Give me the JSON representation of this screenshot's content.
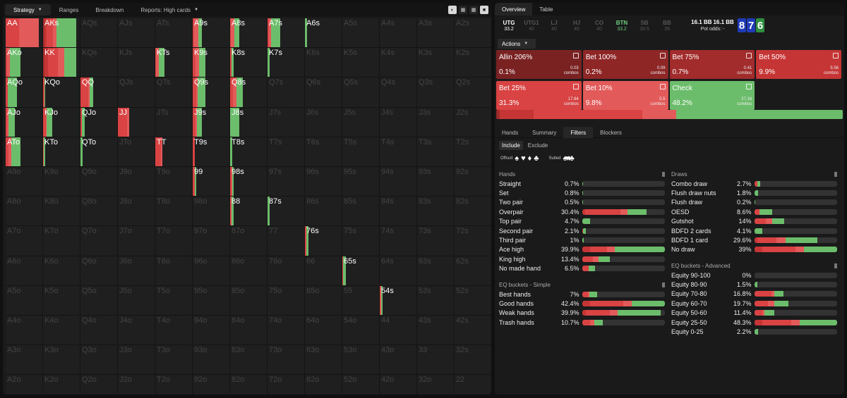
{
  "toolbar": {
    "items": [
      "Strategy",
      "Ranges",
      "Breakdown",
      "Reports: High cards"
    ]
  },
  "colors": {
    "allin": "#7a2222",
    "bet100": "#8e2626",
    "bet75": "#a22b2b",
    "bet50": "#c63535",
    "bet25": "#d94343",
    "bet10": "#e35a5a",
    "check": "#6cbd6b",
    "empty": "#333333"
  },
  "grid": [
    [
      {
        "l": "AA",
        "f": 0.9,
        "m": [
          0,
          0,
          0,
          0,
          40,
          60,
          0
        ]
      },
      {
        "l": "AKs",
        "f": 0.9,
        "m": [
          0,
          0,
          5,
          5,
          20,
          10,
          60
        ]
      },
      {
        "l": "AQs"
      },
      {
        "l": "AJs"
      },
      {
        "l": "ATs"
      },
      {
        "l": "A9s",
        "f": 0.25,
        "m": [
          0,
          0,
          0,
          0,
          15,
          45,
          40
        ]
      },
      {
        "l": "A8s",
        "f": 0.25,
        "m": [
          0,
          0,
          0,
          0,
          10,
          40,
          50
        ]
      },
      {
        "l": "A7s",
        "f": 0.35,
        "m": [
          0,
          0,
          0,
          0,
          10,
          20,
          70
        ]
      },
      {
        "l": "A6s",
        "f": 0.05,
        "m": [
          0,
          0,
          0,
          0,
          0,
          0,
          100
        ]
      },
      {
        "l": "A5s"
      },
      {
        "l": "A4s"
      },
      {
        "l": "A3s"
      },
      {
        "l": "A2s"
      }
    ],
    [
      {
        "l": "AKo",
        "f": 0.4,
        "m": [
          0,
          0,
          0,
          0,
          10,
          20,
          70
        ]
      },
      {
        "l": "KK",
        "f": 0.9,
        "m": [
          0,
          0,
          5,
          10,
          30,
          20,
          35
        ]
      },
      {
        "l": "KQs"
      },
      {
        "l": "KJs"
      },
      {
        "l": "KTs",
        "f": 0.25,
        "m": [
          0,
          0,
          0,
          0,
          10,
          30,
          60
        ]
      },
      {
        "l": "K9s",
        "f": 0.35,
        "m": [
          0,
          0,
          0,
          0,
          20,
          30,
          50
        ]
      },
      {
        "l": "K8s",
        "f": 0.1,
        "m": [
          0,
          0,
          0,
          0,
          30,
          0,
          70
        ]
      },
      {
        "l": "K7s",
        "f": 0.05,
        "m": [
          0,
          0,
          0,
          0,
          0,
          0,
          100
        ]
      },
      {
        "l": "K6s"
      },
      {
        "l": "K5s"
      },
      {
        "l": "K4s"
      },
      {
        "l": "K3s"
      },
      {
        "l": "K2s"
      }
    ],
    [
      {
        "l": "AQo",
        "f": 0.3,
        "m": [
          0,
          0,
          0,
          0,
          20,
          0,
          80
        ]
      },
      {
        "l": "KQo",
        "f": 0.05,
        "m": [
          0,
          0,
          0,
          0,
          80,
          0,
          20
        ]
      },
      {
        "l": "QQ",
        "f": 0.35,
        "m": [
          0,
          0,
          0,
          0,
          60,
          10,
          30
        ]
      },
      {
        "l": "QJs"
      },
      {
        "l": "QTs"
      },
      {
        "l": "Q9s",
        "f": 0.35,
        "m": [
          0,
          0,
          0,
          0,
          30,
          10,
          60
        ]
      },
      {
        "l": "Q8s",
        "f": 0.35,
        "m": [
          0,
          0,
          0,
          0,
          20,
          30,
          50
        ]
      },
      {
        "l": "Q7s"
      },
      {
        "l": "Q6s"
      },
      {
        "l": "Q5s"
      },
      {
        "l": "Q4s"
      },
      {
        "l": "Q3s"
      },
      {
        "l": "Q2s"
      }
    ],
    [
      {
        "l": "AJo",
        "f": 0.25,
        "m": [
          0,
          0,
          0,
          0,
          15,
          15,
          70
        ]
      },
      {
        "l": "KJo",
        "f": 0.25,
        "m": [
          0,
          0,
          0,
          0,
          30,
          10,
          60
        ]
      },
      {
        "l": "QJo",
        "f": 0.12,
        "m": [
          0,
          0,
          0,
          0,
          30,
          10,
          60
        ]
      },
      {
        "l": "JJ",
        "f": 0.3,
        "m": [
          0,
          0,
          0,
          0,
          85,
          15,
          0
        ]
      },
      {
        "l": "JTs"
      },
      {
        "l": "J9s",
        "f": 0.25,
        "m": [
          0,
          0,
          0,
          0,
          30,
          20,
          50
        ]
      },
      {
        "l": "J8s",
        "f": 0.25,
        "m": [
          0,
          0,
          0,
          0,
          0,
          0,
          100
        ]
      },
      {
        "l": "J7s"
      },
      {
        "l": "J6s"
      },
      {
        "l": "J5s"
      },
      {
        "l": "J4s"
      },
      {
        "l": "J3s"
      },
      {
        "l": "J2s"
      }
    ],
    [
      {
        "l": "ATo",
        "f": 0.4,
        "m": [
          0,
          0,
          0,
          0,
          20,
          20,
          60
        ]
      },
      {
        "l": "KTo",
        "f": 0.05,
        "m": [
          0,
          0,
          0,
          0,
          10,
          10,
          80
        ]
      },
      {
        "l": "QTo",
        "f": 0.05,
        "m": [
          0,
          0,
          0,
          0,
          0,
          0,
          100
        ]
      },
      {
        "l": "JTo"
      },
      {
        "l": "TT",
        "f": 0.2,
        "m": [
          0,
          0,
          0,
          0,
          80,
          20,
          0
        ]
      },
      {
        "l": "T9s",
        "f": 0.05,
        "m": [
          0,
          0,
          0,
          0,
          100,
          0,
          0
        ]
      },
      {
        "l": "T8s",
        "f": 0.05,
        "m": [
          0,
          0,
          0,
          0,
          0,
          0,
          100
        ]
      },
      {
        "l": "T7s"
      },
      {
        "l": "T6s"
      },
      {
        "l": "T5s"
      },
      {
        "l": "T4s"
      },
      {
        "l": "T3s"
      },
      {
        "l": "T2s"
      }
    ],
    [
      {
        "l": "A9o"
      },
      {
        "l": "K9o"
      },
      {
        "l": "Q9o"
      },
      {
        "l": "J9o"
      },
      {
        "l": "T9o"
      },
      {
        "l": "99",
        "f": 0.1,
        "m": [
          0,
          0,
          0,
          0,
          60,
          0,
          40
        ]
      },
      {
        "l": "98s",
        "f": 0.1,
        "m": [
          0,
          0,
          0,
          0,
          30,
          20,
          50
        ]
      },
      {
        "l": "97s"
      },
      {
        "l": "96s"
      },
      {
        "l": "95s"
      },
      {
        "l": "94s"
      },
      {
        "l": "93s"
      },
      {
        "l": "92s"
      }
    ],
    [
      {
        "l": "A8o"
      },
      {
        "l": "K8o"
      },
      {
        "l": "Q8o"
      },
      {
        "l": "J8o"
      },
      {
        "l": "T8o"
      },
      {
        "l": "98o"
      },
      {
        "l": "88",
        "f": 0.1,
        "m": [
          0,
          0,
          0,
          0,
          20,
          20,
          60
        ]
      },
      {
        "l": "87s",
        "f": 0.05,
        "m": [
          0,
          0,
          0,
          0,
          0,
          0,
          100
        ]
      },
      {
        "l": "86s"
      },
      {
        "l": "85s"
      },
      {
        "l": "84s"
      },
      {
        "l": "83s"
      },
      {
        "l": "82s"
      }
    ],
    [
      {
        "l": "A7o"
      },
      {
        "l": "K7o"
      },
      {
        "l": "Q7o"
      },
      {
        "l": "J7o"
      },
      {
        "l": "T7o"
      },
      {
        "l": "97o"
      },
      {
        "l": "87o"
      },
      {
        "l": "77"
      },
      {
        "l": "76s",
        "f": 0.1,
        "m": [
          0,
          0,
          0,
          0,
          30,
          10,
          60
        ]
      },
      {
        "l": "75s"
      },
      {
        "l": "74s"
      },
      {
        "l": "73s"
      },
      {
        "l": "72s"
      }
    ],
    [
      {
        "l": "A6o"
      },
      {
        "l": "K6o"
      },
      {
        "l": "Q6o"
      },
      {
        "l": "J6o"
      },
      {
        "l": "T6o"
      },
      {
        "l": "96o"
      },
      {
        "l": "86o"
      },
      {
        "l": "76o"
      },
      {
        "l": "66"
      },
      {
        "l": "65s",
        "f": 0.1,
        "m": [
          0,
          0,
          0,
          0,
          10,
          10,
          80
        ]
      },
      {
        "l": "64s"
      },
      {
        "l": "63s"
      },
      {
        "l": "62s"
      }
    ],
    [
      {
        "l": "A5o"
      },
      {
        "l": "K5o"
      },
      {
        "l": "Q5o"
      },
      {
        "l": "J5o"
      },
      {
        "l": "T5o"
      },
      {
        "l": "95o"
      },
      {
        "l": "85o"
      },
      {
        "l": "75o"
      },
      {
        "l": "65o"
      },
      {
        "l": "55"
      },
      {
        "l": "54s",
        "f": 0.08,
        "m": [
          0,
          0,
          0,
          0,
          20,
          20,
          60
        ]
      },
      {
        "l": "53s"
      },
      {
        "l": "52s"
      }
    ],
    [
      {
        "l": "A4o"
      },
      {
        "l": "K4o"
      },
      {
        "l": "Q4o"
      },
      {
        "l": "J4o"
      },
      {
        "l": "T4o"
      },
      {
        "l": "94o"
      },
      {
        "l": "84o"
      },
      {
        "l": "74o"
      },
      {
        "l": "64o"
      },
      {
        "l": "54o"
      },
      {
        "l": "44"
      },
      {
        "l": "43s"
      },
      {
        "l": "42s"
      }
    ],
    [
      {
        "l": "A3o"
      },
      {
        "l": "K3o"
      },
      {
        "l": "Q3o"
      },
      {
        "l": "J3o"
      },
      {
        "l": "T3o"
      },
      {
        "l": "93o"
      },
      {
        "l": "83o"
      },
      {
        "l": "73o"
      },
      {
        "l": "63o"
      },
      {
        "l": "53o"
      },
      {
        "l": "43o"
      },
      {
        "l": "33"
      },
      {
        "l": "32s"
      }
    ],
    [
      {
        "l": "A2o"
      },
      {
        "l": "K2o"
      },
      {
        "l": "Q2o"
      },
      {
        "l": "J2o"
      },
      {
        "l": "T2o"
      },
      {
        "l": "92o"
      },
      {
        "l": "82o"
      },
      {
        "l": "72o"
      },
      {
        "l": "62o"
      },
      {
        "l": "52o"
      },
      {
        "l": "42o"
      },
      {
        "l": "32o"
      },
      {
        "l": "22"
      }
    ]
  ],
  "right": {
    "tabs": [
      "Overview",
      "Table"
    ],
    "positions": [
      {
        "n": "UTG",
        "s": "33.2",
        "cls": "hero"
      },
      {
        "n": "UTG1",
        "s": "40",
        "cls": ""
      },
      {
        "n": "LJ",
        "s": "40",
        "cls": ""
      },
      {
        "n": "HJ",
        "s": "40",
        "cls": ""
      },
      {
        "n": "CO",
        "s": "40",
        "cls": ""
      },
      {
        "n": "BTN",
        "s": "33.2",
        "cls": "btn"
      },
      {
        "n": "SB",
        "s": "39.5",
        "cls": ""
      },
      {
        "n": "BB",
        "s": "39",
        "cls": ""
      }
    ],
    "stack": {
      "a": "16.1 BB",
      "b": "16.1 BB",
      "pot": "Pot odds:  -"
    },
    "board": [
      {
        "r": "8",
        "c": "#1f3bb8"
      },
      {
        "r": "7",
        "c": "#1f3bb8"
      },
      {
        "r": "6",
        "c": "#2f8f3f"
      }
    ],
    "actions_label": "Actions",
    "actions": [
      {
        "name": "Allin 206%",
        "pct": "0.1%",
        "combos": "0.03",
        "k": "allin"
      },
      {
        "name": "Bet 100%",
        "pct": "0.2%",
        "combos": "0.09",
        "k": "bet100"
      },
      {
        "name": "Bet 75%",
        "pct": "0.7%",
        "combos": "0.41",
        "k": "bet75"
      },
      {
        "name": "Bet 50%",
        "pct": "9.9%",
        "combos": "5.56",
        "k": "bet50"
      },
      {
        "name": "Bet 25%",
        "pct": "31.3%",
        "combos": "17.64",
        "k": "bet25"
      },
      {
        "name": "Bet 10%",
        "pct": "9.8%",
        "combos": "5.5",
        "k": "bet10"
      },
      {
        "name": "Check",
        "pct": "48.2%",
        "combos": "27.16",
        "k": "check"
      }
    ],
    "combos_word": "combos",
    "ftabs": [
      "Hands",
      "Summary",
      "Filters",
      "Blockers"
    ],
    "include": "Include",
    "exclude": "Exclude",
    "offsuit": "Offsuit",
    "suited": "Suited",
    "hands_title": "Hands",
    "hands": [
      {
        "n": "Straight",
        "p": "0.7%",
        "v": [
          0,
          0,
          0,
          0,
          0,
          0,
          100
        ],
        "f": 0.01
      },
      {
        "n": "Set",
        "p": "0.8%",
        "v": [
          0,
          0,
          0,
          0,
          0,
          0,
          100
        ],
        "f": 0.01
      },
      {
        "n": "Two pair",
        "p": "0.5%",
        "v": [
          0,
          0,
          0,
          0,
          0,
          0,
          100
        ],
        "f": 0.01
      },
      {
        "n": "Overpair",
        "p": "30.4%",
        "v": [
          0,
          0,
          0,
          5,
          55,
          10,
          30
        ],
        "f": 0.78
      },
      {
        "n": "Top pair",
        "p": "4.7%",
        "v": [
          0,
          0,
          0,
          0,
          0,
          0,
          100
        ],
        "f": 0.1
      },
      {
        "n": "Second pair",
        "p": "2.1%",
        "v": [
          0,
          0,
          0,
          0,
          20,
          0,
          80
        ],
        "f": 0.05
      },
      {
        "n": "Third pair",
        "p": "1%",
        "v": [
          0,
          0,
          0,
          0,
          0,
          0,
          100
        ],
        "f": 0.02
      },
      {
        "n": "Ace high",
        "p": "39.9%",
        "v": [
          0,
          0,
          0,
          10,
          20,
          10,
          60
        ],
        "f": 1
      },
      {
        "n": "King high",
        "p": "13.4%",
        "v": [
          0,
          0,
          0,
          0,
          40,
          20,
          40
        ],
        "f": 0.34
      },
      {
        "n": "No made hand",
        "p": "6.5%",
        "v": [
          0,
          0,
          0,
          0,
          50,
          0,
          50
        ],
        "f": 0.16
      }
    ],
    "eqs_title": "EQ buckets - Simple",
    "eqs": [
      {
        "n": "Best hands",
        "p": "7%",
        "v": [
          0,
          0,
          0,
          0,
          40,
          10,
          50
        ],
        "f": 0.18
      },
      {
        "n": "Good hands",
        "p": "42.4%",
        "v": [
          0,
          0,
          0,
          10,
          40,
          10,
          40
        ],
        "f": 1
      },
      {
        "n": "Weak hands",
        "p": "39.9%",
        "v": [
          0,
          0,
          0,
          5,
          30,
          10,
          55
        ],
        "f": 0.95
      },
      {
        "n": "Trash hands",
        "p": "10.7%",
        "v": [
          0,
          0,
          0,
          0,
          40,
          20,
          40
        ],
        "f": 0.25
      }
    ],
    "draws_title": "Draws",
    "draws": [
      {
        "n": "Combo draw",
        "p": "2.7%",
        "v": [
          0,
          0,
          0,
          0,
          60,
          0,
          40
        ],
        "f": 0.07
      },
      {
        "n": "Flush draw nuts",
        "p": "1.8%",
        "v": [
          0,
          0,
          0,
          0,
          0,
          0,
          100
        ],
        "f": 0.05
      },
      {
        "n": "Flush draw",
        "p": "0.2%",
        "v": [
          0,
          0,
          0,
          0,
          0,
          0,
          100
        ],
        "f": 0.01
      },
      {
        "n": "OESD",
        "p": "8.6%",
        "v": [
          0,
          0,
          0,
          0,
          30,
          0,
          70
        ],
        "f": 0.22
      },
      {
        "n": "Gutshot",
        "p": "14%",
        "v": [
          0,
          0,
          0,
          0,
          40,
          20,
          40
        ],
        "f": 0.36
      },
      {
        "n": "BDFD 2 cards",
        "p": "4.1%",
        "v": [
          0,
          0,
          0,
          0,
          0,
          0,
          100
        ],
        "f": 0.1
      },
      {
        "n": "BDFD 1 card",
        "p": "29.6%",
        "v": [
          0,
          0,
          0,
          5,
          30,
          15,
          50
        ],
        "f": 0.76
      },
      {
        "n": "No draw",
        "p": "39%",
        "v": [
          0,
          0,
          0,
          10,
          40,
          10,
          40
        ],
        "f": 1
      }
    ],
    "eqa_title": "EQ buckets - Advanced",
    "eqa": [
      {
        "n": "Equity 90-100",
        "p": "0%",
        "v": [
          0,
          0,
          0,
          0,
          0,
          0,
          0
        ],
        "f": 0
      },
      {
        "n": "Equity 80-90",
        "p": "1.5%",
        "v": [
          0,
          0,
          0,
          0,
          0,
          0,
          100
        ],
        "f": 0.04
      },
      {
        "n": "Equity 70-80",
        "p": "16.8%",
        "v": [
          0,
          0,
          0,
          0,
          60,
          10,
          30
        ],
        "f": 0.35
      },
      {
        "n": "Equity 60-70",
        "p": "19.7%",
        "v": [
          0,
          0,
          0,
          0,
          40,
          20,
          40
        ],
        "f": 0.41
      },
      {
        "n": "Equity 50-60",
        "p": "11.4%",
        "v": [
          0,
          0,
          0,
          0,
          40,
          10,
          50
        ],
        "f": 0.24
      },
      {
        "n": "Equity 25-50",
        "p": "48.3%",
        "v": [
          0,
          0,
          0,
          10,
          35,
          10,
          45
        ],
        "f": 1
      },
      {
        "n": "Equity 0-25",
        "p": "2.2%",
        "v": [
          0,
          0,
          0,
          0,
          0,
          0,
          100
        ],
        "f": 0.05
      }
    ]
  }
}
